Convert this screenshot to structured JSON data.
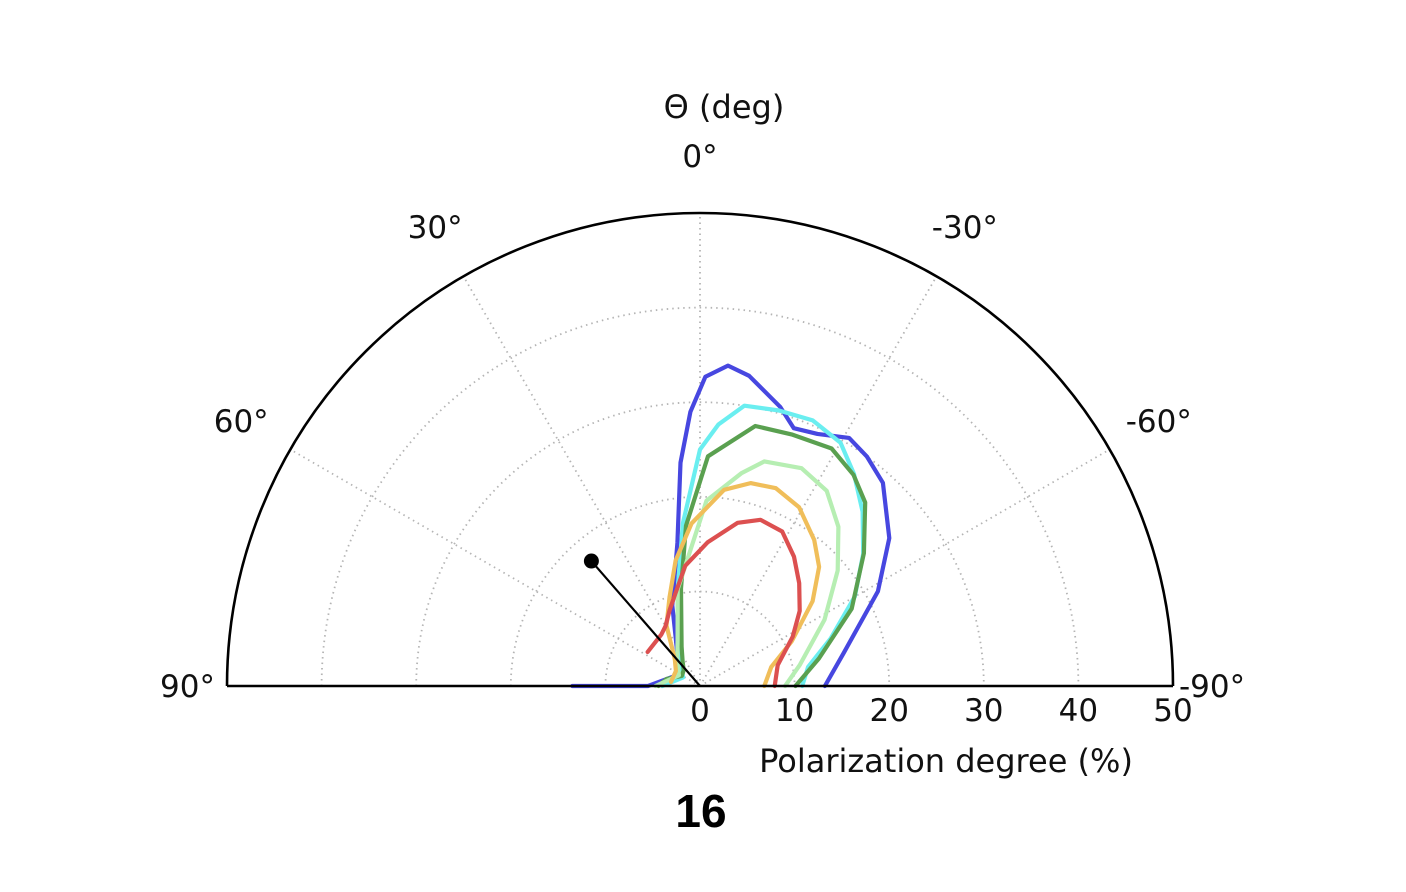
{
  "chart_data": {
    "type": "polar-contour",
    "theta_title": "Θ (deg)",
    "radial_title": "Polarization degree (%)",
    "panel_label": "16",
    "theta_range": [
      90,
      -90
    ],
    "r_range": [
      0,
      50
    ],
    "grid": true,
    "theta_ticks": [
      {
        "value": 0,
        "label": "0°"
      },
      {
        "value": 30,
        "label": "30°"
      },
      {
        "value": -30,
        "label": "-30°"
      },
      {
        "value": 60,
        "label": "60°"
      },
      {
        "value": -60,
        "label": "-60°"
      },
      {
        "value": 90,
        "label": "90°"
      },
      {
        "value": -90,
        "label": "-90°"
      }
    ],
    "r_ticks": [
      {
        "value": 0,
        "label": "0"
      },
      {
        "value": 10,
        "label": "10"
      },
      {
        "value": 20,
        "label": "20"
      },
      {
        "value": 30,
        "label": "30"
      },
      {
        "value": 40,
        "label": "40"
      },
      {
        "value": 50,
        "label": "50"
      }
    ],
    "best_fit": {
      "theta": 41,
      "r": 17.5
    },
    "contours": [
      {
        "color": "#4747e0",
        "points": [
          [
            90,
            13.5
          ],
          [
            90,
            5.5
          ],
          [
            67,
            2.8
          ],
          [
            45,
            3.1
          ],
          [
            32,
            4.6
          ],
          [
            19,
            9.0
          ],
          [
            9,
            15.3
          ],
          [
            5,
            23.7
          ],
          [
            2,
            29.0
          ],
          [
            -1,
            32.7
          ],
          [
            -5,
            34.0
          ],
          [
            -9,
            33.2
          ],
          [
            -16,
            30.7
          ],
          [
            -20,
            29.0
          ],
          [
            -25,
            29.4
          ],
          [
            -31,
            30.6
          ],
          [
            -36,
            30.0
          ],
          [
            -42,
            28.9
          ],
          [
            -52,
            25.4
          ],
          [
            -62,
            21.3
          ],
          [
            -77,
            15.6
          ],
          [
            -90,
            13.2
          ]
        ]
      },
      {
        "color": "#6aeef0",
        "points": [
          [
            -90,
            10.8
          ],
          [
            -80,
            11.6
          ],
          [
            -70,
            14.7
          ],
          [
            -60,
            18.9
          ],
          [
            -51,
            22.2
          ],
          [
            -43,
            25.2
          ],
          [
            -36,
            27.7
          ],
          [
            -30,
            29.7
          ],
          [
            -23,
            30.5
          ],
          [
            -16,
            30.3
          ],
          [
            -9,
            30.0
          ],
          [
            -4,
            27.7
          ],
          [
            0,
            25.0
          ],
          [
            6,
            17.3
          ],
          [
            13,
            10.5
          ],
          [
            26,
            5.4
          ],
          [
            40,
            3.1
          ],
          [
            63,
            2.0
          ],
          [
            90,
            4.0
          ]
        ]
      },
      {
        "color": "#5aa050",
        "points": [
          [
            90,
            4.4
          ],
          [
            78,
            3.6
          ],
          [
            61,
            2.2
          ],
          [
            46,
            2.4
          ],
          [
            35,
            3.2
          ],
          [
            25,
            4.6
          ],
          [
            11,
            10.5
          ],
          [
            5,
            17.0
          ],
          [
            -2,
            24.3
          ],
          [
            -12,
            28.1
          ],
          [
            -20,
            28.3
          ],
          [
            -29,
            28.7
          ],
          [
            -36,
            27.6
          ],
          [
            -42,
            26.1
          ],
          [
            -51,
            22.3
          ],
          [
            -63,
            18.0
          ],
          [
            -77,
            12.9
          ],
          [
            -90,
            10.1
          ]
        ]
      },
      {
        "color": "#b6eeb2",
        "points": [
          [
            -90,
            9.0
          ],
          [
            -78,
            10.8
          ],
          [
            -62,
            14.9
          ],
          [
            -50,
            19.0
          ],
          [
            -41,
            22.3
          ],
          [
            -33,
            24.6
          ],
          [
            -25,
            25.4
          ],
          [
            -16,
            24.7
          ],
          [
            -11,
            22.9
          ],
          [
            -2,
            19.6
          ],
          [
            13,
            10.5
          ],
          [
            26,
            5.4
          ],
          [
            42,
            3.6
          ],
          [
            63,
            2.5
          ],
          [
            90,
            4.7
          ]
        ]
      },
      {
        "color": "#f0be5a",
        "points": [
          [
            -90,
            6.8
          ],
          [
            -75,
            7.8
          ],
          [
            -64,
            10.8
          ],
          [
            -53,
            14.9
          ],
          [
            -45,
            17.8
          ],
          [
            -38,
            19.6
          ],
          [
            -29,
            21.6
          ],
          [
            -21,
            22.4
          ],
          [
            -14,
            22.1
          ],
          [
            -7,
            20.9
          ],
          [
            3,
            17.2
          ],
          [
            11,
            13.5
          ],
          [
            19,
            9.9
          ],
          [
            29,
            7.3
          ],
          [
            43,
            3.9
          ],
          [
            58,
            3.0
          ],
          [
            82,
            3.1
          ]
        ]
      },
      {
        "color": "#dc5050",
        "points": [
          [
            -90,
            7.9
          ],
          [
            -75,
            8.5
          ],
          [
            -62,
            11.1
          ],
          [
            -53,
            13.2
          ],
          [
            -44,
            15.1
          ],
          [
            -36,
            16.9
          ],
          [
            -28,
            18.5
          ],
          [
            -20,
            18.7
          ],
          [
            -13,
            17.7
          ],
          [
            -3,
            15.2
          ],
          [
            7,
            12.8
          ],
          [
            15,
            10.1
          ],
          [
            22,
            8.6
          ],
          [
            30,
            7.3
          ],
          [
            37,
            6.8
          ],
          [
            57,
            6.6
          ]
        ]
      }
    ]
  },
  "colors": {
    "frame": "#000000",
    "grid": "#b4b4b4",
    "fit_line": "#000000"
  }
}
